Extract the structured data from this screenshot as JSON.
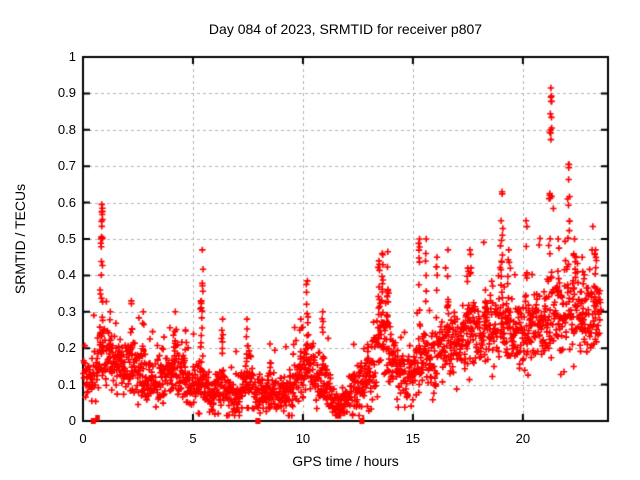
{
  "chart_data": {
    "type": "scatter",
    "title": "Day 084 of 2023, SRMTID for receiver p807",
    "xlabel": "GPS time / hours",
    "ylabel": "SRMTID / TECUs",
    "xlim": [
      0,
      23.87
    ],
    "ylim": [
      0,
      1
    ],
    "xticks": [
      {
        "v": 0,
        "label": "0"
      },
      {
        "v": 5,
        "label": "5"
      },
      {
        "v": 10,
        "label": "10"
      },
      {
        "v": 15,
        "label": "15"
      },
      {
        "v": 20,
        "label": "20"
      }
    ],
    "yticks": [
      {
        "v": 0,
        "label": "0"
      },
      {
        "v": 0.1,
        "label": "0.1"
      },
      {
        "v": 0.2,
        "label": "0.2"
      },
      {
        "v": 0.3,
        "label": "0.3"
      },
      {
        "v": 0.4,
        "label": "0.4"
      },
      {
        "v": 0.5,
        "label": "0.5"
      },
      {
        "v": 0.6,
        "label": "0.6"
      },
      {
        "v": 0.7,
        "label": "0.7"
      },
      {
        "v": 0.8,
        "label": "0.8"
      },
      {
        "v": 0.9,
        "label": "0.9"
      },
      {
        "v": 1,
        "label": "1"
      }
    ],
    "grid": "dashed-major",
    "legend": "none",
    "marker": "plus",
    "marker_color": "#ff0000",
    "grid_color": "#b3b3b3",
    "border_color": "#000000",
    "background": "#ffffff",
    "seed": 20230084,
    "samples_per_hour": 85,
    "t_start": 0.02,
    "t_end": 23.55,
    "band_profile": [
      [
        0.0,
        0.14,
        0.05
      ],
      [
        0.4,
        0.12,
        0.05
      ],
      [
        0.7,
        0.17,
        0.065
      ],
      [
        0.95,
        0.19,
        0.065
      ],
      [
        1.3,
        0.17,
        0.06
      ],
      [
        1.8,
        0.155,
        0.055
      ],
      [
        2.3,
        0.15,
        0.06
      ],
      [
        2.8,
        0.13,
        0.055
      ],
      [
        3.25,
        0.1,
        0.05
      ],
      [
        3.7,
        0.12,
        0.055
      ],
      [
        4.2,
        0.14,
        0.06
      ],
      [
        4.7,
        0.11,
        0.05
      ],
      [
        5.1,
        0.095,
        0.045
      ],
      [
        5.4,
        0.11,
        0.05
      ],
      [
        5.8,
        0.075,
        0.04
      ],
      [
        6.3,
        0.095,
        0.05
      ],
      [
        6.8,
        0.065,
        0.035
      ],
      [
        7.2,
        0.08,
        0.045
      ],
      [
        7.5,
        0.12,
        0.065
      ],
      [
        7.9,
        0.075,
        0.04
      ],
      [
        8.5,
        0.08,
        0.045
      ],
      [
        9.0,
        0.07,
        0.04
      ],
      [
        9.5,
        0.095,
        0.05
      ],
      [
        9.9,
        0.13,
        0.055
      ],
      [
        10.2,
        0.15,
        0.065
      ],
      [
        10.6,
        0.12,
        0.06
      ],
      [
        11.0,
        0.11,
        0.06
      ],
      [
        11.4,
        0.055,
        0.035
      ],
      [
        11.7,
        0.04,
        0.025
      ],
      [
        12.1,
        0.075,
        0.04
      ],
      [
        12.6,
        0.1,
        0.05
      ],
      [
        13.1,
        0.14,
        0.06
      ],
      [
        13.5,
        0.24,
        0.09
      ],
      [
        13.8,
        0.2,
        0.08
      ],
      [
        14.2,
        0.145,
        0.06
      ],
      [
        14.7,
        0.115,
        0.05
      ],
      [
        15.1,
        0.14,
        0.06
      ],
      [
        15.5,
        0.18,
        0.07
      ],
      [
        16.0,
        0.165,
        0.065
      ],
      [
        16.5,
        0.21,
        0.075
      ],
      [
        17.0,
        0.21,
        0.075
      ],
      [
        17.5,
        0.25,
        0.08
      ],
      [
        18.0,
        0.23,
        0.075
      ],
      [
        18.5,
        0.27,
        0.085
      ],
      [
        19.0,
        0.3,
        0.09
      ],
      [
        19.6,
        0.235,
        0.075
      ],
      [
        20.0,
        0.23,
        0.075
      ],
      [
        20.4,
        0.26,
        0.08
      ],
      [
        21.0,
        0.27,
        0.085
      ],
      [
        21.4,
        0.3,
        0.1
      ],
      [
        21.8,
        0.285,
        0.09
      ],
      [
        22.2,
        0.31,
        0.095
      ],
      [
        22.6,
        0.3,
        0.09
      ],
      [
        23.0,
        0.28,
        0.085
      ],
      [
        23.3,
        0.3,
        0.09
      ],
      [
        23.55,
        0.3,
        0.08
      ]
    ],
    "spikes": [
      [
        0.78,
        0.2,
        0.36,
        6
      ],
      [
        0.85,
        0.26,
        0.5,
        10
      ],
      [
        0.86,
        0.5,
        0.595,
        12
      ],
      [
        1.25,
        0.18,
        0.3,
        5
      ],
      [
        2.2,
        0.17,
        0.33,
        6
      ],
      [
        2.75,
        0.15,
        0.3,
        5
      ],
      [
        3.6,
        0.1,
        0.2,
        4
      ],
      [
        4.2,
        0.14,
        0.3,
        6
      ],
      [
        4.65,
        0.12,
        0.25,
        5
      ],
      [
        5.38,
        0.14,
        0.33,
        8
      ],
      [
        5.42,
        0.3,
        0.47,
        7
      ],
      [
        6.35,
        0.09,
        0.28,
        6
      ],
      [
        7.45,
        0.1,
        0.28,
        7
      ],
      [
        8.5,
        0.07,
        0.16,
        5
      ],
      [
        9.9,
        0.11,
        0.28,
        6
      ],
      [
        10.2,
        0.15,
        0.385,
        10
      ],
      [
        10.9,
        0.11,
        0.3,
        6
      ],
      [
        12.95,
        0.1,
        0.21,
        5
      ],
      [
        13.45,
        0.22,
        0.44,
        10
      ],
      [
        13.6,
        0.26,
        0.46,
        10
      ],
      [
        13.85,
        0.28,
        0.465,
        10
      ],
      [
        14.1,
        0.1,
        0.22,
        4
      ],
      [
        15.3,
        0.22,
        0.5,
        10
      ],
      [
        15.6,
        0.32,
        0.5,
        6
      ],
      [
        16.1,
        0.28,
        0.45,
        6
      ],
      [
        16.6,
        0.28,
        0.47,
        7
      ],
      [
        17.5,
        0.26,
        0.42,
        7
      ],
      [
        17.6,
        0.33,
        0.47,
        5
      ],
      [
        18.3,
        0.22,
        0.36,
        5
      ],
      [
        19.0,
        0.3,
        0.55,
        8
      ],
      [
        19.05,
        0.45,
        0.63,
        6
      ],
      [
        19.35,
        0.28,
        0.47,
        6
      ],
      [
        20.15,
        0.33,
        0.55,
        7
      ],
      [
        21.22,
        0.42,
        0.62,
        6
      ],
      [
        21.26,
        0.6,
        0.8,
        6
      ],
      [
        21.28,
        0.8,
        0.915,
        9
      ],
      [
        21.6,
        0.3,
        0.5,
        6
      ],
      [
        22.08,
        0.45,
        0.705,
        10
      ],
      [
        22.35,
        0.3,
        0.5,
        8
      ],
      [
        22.7,
        0.25,
        0.45,
        6
      ],
      [
        23.3,
        0.28,
        0.47,
        8
      ]
    ],
    "axis_markers": [
      {
        "t": 0.47,
        "style": "square"
      },
      {
        "t": 0.6,
        "style": "tick"
      },
      {
        "t": 0.66,
        "style": "tick"
      },
      {
        "t": 0.72,
        "style": "tick"
      },
      {
        "t": 7.95,
        "style": "square"
      },
      {
        "t": 12.68,
        "style": "square"
      },
      {
        "t": 12.74,
        "style": "tick"
      }
    ]
  }
}
